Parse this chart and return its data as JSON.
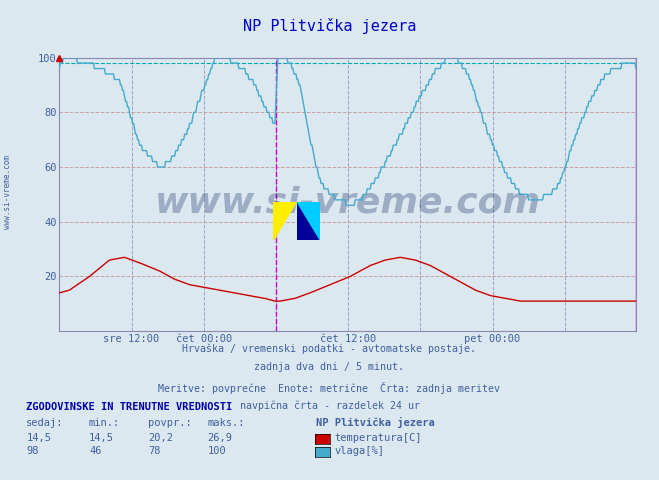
{
  "title": "NP Plitvička jezera",
  "bg_color": "#dce8f0",
  "plot_bg_color": "#dce8f0",
  "ylim": [
    0,
    100
  ],
  "xlim_n": 576,
  "x_ticks": [
    72,
    144,
    288,
    432
  ],
  "x_tick_labels": [
    "sre 12:00",
    "čet 00:00",
    "čet 12:00",
    "pet 00:00"
  ],
  "y_ticks": [
    20,
    40,
    60,
    80,
    100
  ],
  "vline1_x": 216,
  "vline2_x": 575,
  "hline_y": 98,
  "title_color": "#0000cc",
  "text_color": "#4060a0",
  "watermark": "www.si-vreme.com",
  "subtitle_lines": [
    "Hrvaška / vremenski podatki - avtomatske postaje.",
    "zadnja dva dni / 5 minut.",
    "Meritve: povprečne  Enote: metrične  Črta: zadnja meritev",
    "navpična črta - razdelek 24 ur"
  ],
  "legend_title": "ZGODOVINSKE IN TRENUTNE VREDNOSTI",
  "legend_headers": [
    "sedaj:",
    "min.:",
    "povpr.:",
    "maks.:"
  ],
  "legend_vals_temp": [
    "14,5",
    "14,5",
    "20,2",
    "26,9"
  ],
  "legend_vals_vlaga": [
    "98",
    "46",
    "78",
    "100"
  ],
  "legend_station": "NP Plitvička jezera",
  "temp_color": "#cc0000",
  "vlaga_color": "#44aacc",
  "temp_label": "temperatura[C]",
  "vlaga_label": "vlaga[%]",
  "grid_h_color": "#c8a0a0",
  "grid_v_color": "#a0a0c8",
  "magenta": "#cc00cc",
  "cyan_dash": "#00aaaa"
}
